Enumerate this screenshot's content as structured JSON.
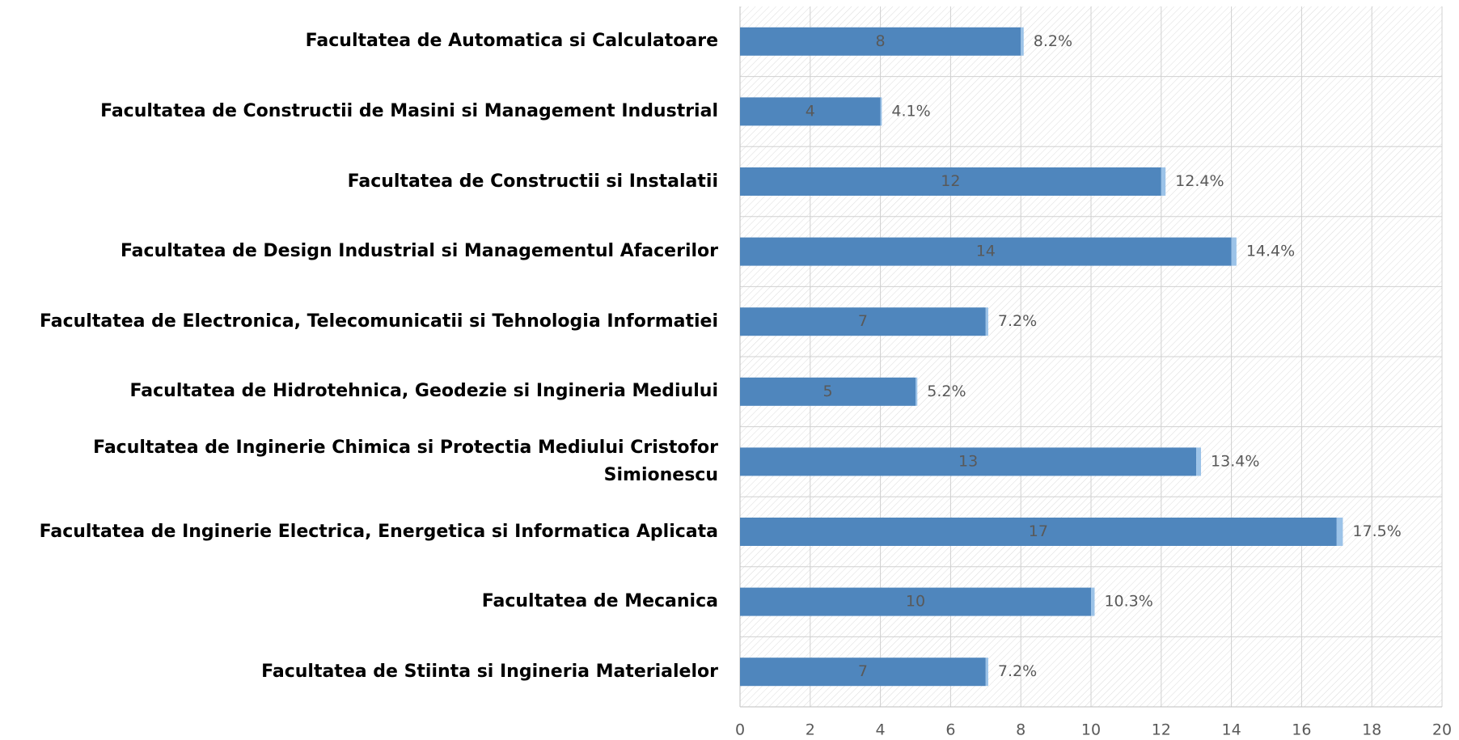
{
  "chart_data": {
    "type": "bar",
    "orientation": "horizontal",
    "stacked": true,
    "categories": [
      "Facultatea de Automatica si Calculatoare",
      "Facultatea de Constructii de Masini si Management Industrial",
      "Facultatea de Constructii si Instalatii",
      "Facultatea de Design Industrial si Managementul Afacerilor",
      "Facultatea de Electronica, Telecomunicatii si Tehnologia Informatiei",
      "Facultatea de Hidrotehnica, Geodezie si Ingineria Mediului",
      "Facultatea de Inginerie Chimica si Protectia Mediului Cristofor Simionescu",
      "Facultatea de Inginerie Electrica, Energetica si Informatica Aplicata",
      "Facultatea de Mecanica",
      "Facultatea de Stiinta si Ingineria Materialelor"
    ],
    "series": [
      {
        "color": "#4f86bd",
        "values": [
          8,
          4,
          12,
          14,
          7,
          5,
          13,
          17,
          10,
          7
        ]
      },
      {
        "color": "#9cc3e8",
        "values": [
          0.082,
          0.041,
          0.124,
          0.144,
          0.072,
          0.052,
          0.134,
          0.175,
          0.103,
          0.072
        ],
        "value_labels": [
          "8.2%",
          "4.1%",
          "12.4%",
          "14.4%",
          "7.2%",
          "5.2%",
          "13.4%",
          "17.5%",
          "10.3%",
          "7.2%"
        ]
      }
    ],
    "xlim": [
      0,
      20
    ],
    "xticks": [
      0,
      2,
      4,
      6,
      8,
      10,
      12,
      14,
      16,
      18,
      20
    ],
    "grid": true
  }
}
